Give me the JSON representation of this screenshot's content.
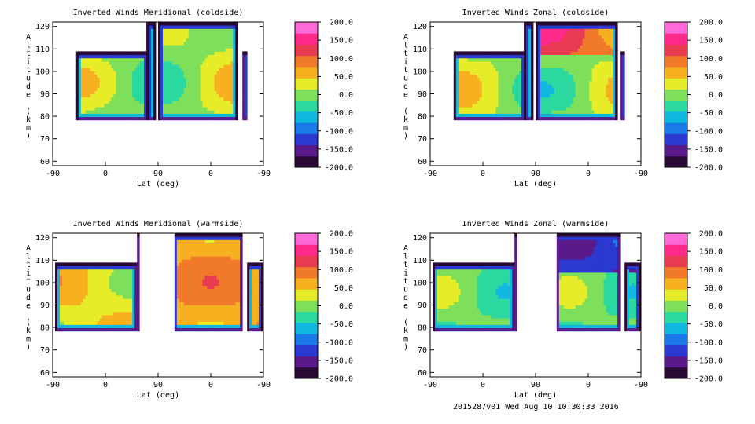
{
  "footer": "2015287v01 Wed Aug 10 10:30:33 2016",
  "chart_data": [
    {
      "type": "heatmap",
      "title": "Inverted Winds Meridional (coldside)",
      "xlabel": "Lat (deg)",
      "ylabel": "Altitude (km)",
      "x_ticks": [
        "-90",
        "0",
        "90",
        "0",
        "-90"
      ],
      "y_ticks": [
        "60",
        "70",
        "80",
        "90",
        "100",
        "110",
        "120"
      ],
      "ylim": [
        58,
        122
      ],
      "colorbar_ticks": [
        "200.0",
        "150.0",
        "100.0",
        "50.0",
        "0.0",
        "-50.0",
        "-100.0",
        "-150.0",
        "-200.0"
      ],
      "colorbar_range": [
        -200,
        200
      ],
      "grid": false
    },
    {
      "type": "heatmap",
      "title": "Inverted Winds Zonal (coldside)",
      "xlabel": "Lat (deg)",
      "ylabel": "Altitude (km)",
      "x_ticks": [
        "-90",
        "0",
        "90",
        "0",
        "-90"
      ],
      "y_ticks": [
        "60",
        "70",
        "80",
        "90",
        "100",
        "110",
        "120"
      ],
      "ylim": [
        58,
        122
      ],
      "colorbar_ticks": [
        "200.0",
        "150.0",
        "100.0",
        "50.0",
        "0.0",
        "-50.0",
        "-100.0",
        "-150.0",
        "-200.0"
      ],
      "colorbar_range": [
        -200,
        200
      ],
      "grid": false
    },
    {
      "type": "heatmap",
      "title": "Inverted Winds Meridional (warmside)",
      "xlabel": "Lat (deg)",
      "ylabel": "Altitude (km)",
      "x_ticks": [
        "-90",
        "0",
        "90",
        "0",
        "-90"
      ],
      "y_ticks": [
        "60",
        "70",
        "80",
        "90",
        "100",
        "110",
        "120"
      ],
      "ylim": [
        58,
        122
      ],
      "colorbar_ticks": [
        "200.0",
        "150.0",
        "100.0",
        "50.0",
        "0.0",
        "-50.0",
        "-100.0",
        "-150.0",
        "-200.0"
      ],
      "colorbar_range": [
        -200,
        200
      ],
      "grid": false
    },
    {
      "type": "heatmap",
      "title": "Inverted Winds Zonal (warmside)",
      "xlabel": "Lat (deg)",
      "ylabel": "Altitude (km)",
      "x_ticks": [
        "-90",
        "0",
        "90",
        "0",
        "-90"
      ],
      "y_ticks": [
        "60",
        "70",
        "80",
        "90",
        "100",
        "110",
        "120"
      ],
      "ylim": [
        58,
        122
      ],
      "colorbar_ticks": [
        "200.0",
        "150.0",
        "100.0",
        "50.0",
        "0.0",
        "-50.0",
        "-100.0",
        "-150.0",
        "-200.0"
      ],
      "colorbar_range": [
        -200,
        200
      ],
      "grid": false
    }
  ]
}
